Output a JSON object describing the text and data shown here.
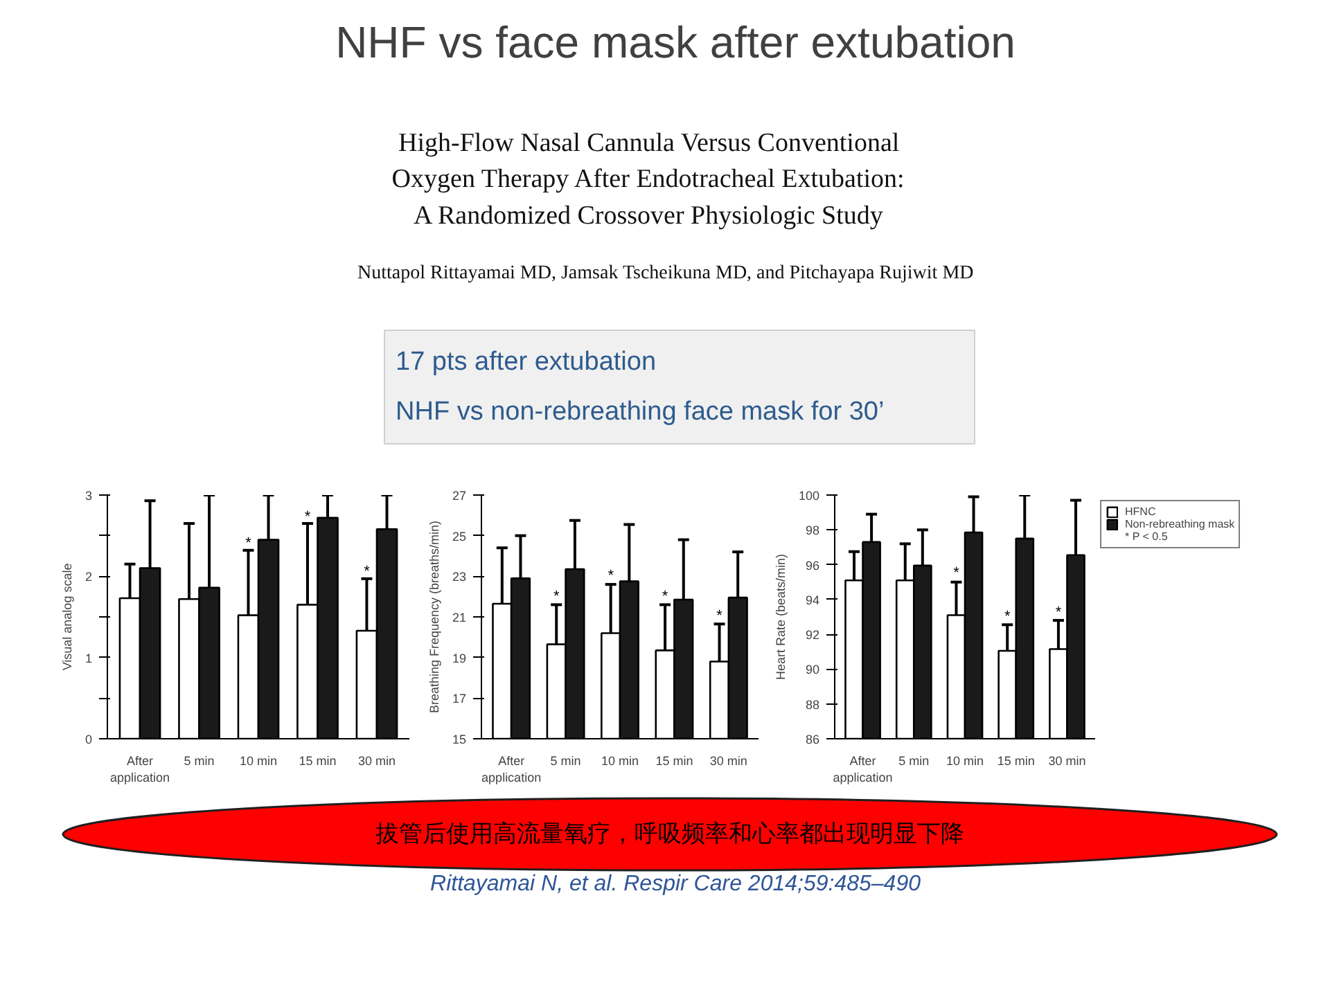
{
  "chart_data": [
    {
      "type": "other",
      "title": "NHF vs face mask after extubation",
      "annotations": [
        "High-Flow Nasal Cannula Versus Conventional\nOxygen Therapy After Endotracheal Extubation:\nA Randomized Crossover Physiologic Study",
        "Nuttapol Rittayamai MD, Jamsak Tscheikuna MD, and Pitchayapa Rujiwit MD",
        "17 pts after extubation",
        "NHF vs non-rebreathing face mask for 30’"
      ]
    },
    {
      "type": "bar",
      "ylabel": "Visual analog scale",
      "categories": [
        "After\napplication",
        "5 min",
        "10 min",
        "15 min",
        "30 min"
      ],
      "ylim": [
        0,
        3
      ],
      "yticks": [
        0,
        {
          "value": 0.5,
          "label": null
        },
        1,
        {
          "value": 1.5,
          "label": null
        },
        2,
        {
          "value": 2.5,
          "label": null
        },
        3
      ],
      "grid": false,
      "series": [
        {
          "color": "#ffffff",
          "values": [
            1.73,
            1.72,
            1.52,
            1.65,
            1.33
          ],
          "errors": [
            [
              1.73,
              2.15
            ],
            [
              1.72,
              2.65
            ],
            [
              1.52,
              2.32
            ],
            [
              1.65,
              2.65
            ],
            [
              1.33,
              1.97
            ]
          ]
        },
        {
          "color": "#1a1a1a",
          "values": [
            2.1,
            1.86,
            2.45,
            2.72,
            2.58
          ],
          "errors": [
            [
              2.1,
              2.93
            ],
            [
              1.86,
              3.0
            ],
            [
              2.45,
              3.0
            ],
            [
              2.72,
              3.0
            ],
            [
              2.58,
              3.0
            ]
          ]
        }
      ],
      "annotations": [
        {
          "text": "*",
          "x": "10 min",
          "y": 2.4
        },
        {
          "text": "*",
          "x": "15 min",
          "y": 2.73
        },
        {
          "text": "*",
          "x": "30 min",
          "y": 2.05
        }
      ]
    },
    {
      "type": "bar",
      "ylabel": "Breathing Frequency (breaths/min)",
      "categories": [
        "After\napplication",
        "5 min",
        "10 min",
        "15 min",
        "30 min"
      ],
      "ylim": [
        15,
        27
      ],
      "yticks": [
        15,
        17,
        19,
        21,
        23,
        25,
        27
      ],
      "grid": false,
      "series": [
        {
          "color": "#ffffff",
          "values": [
            21.65,
            19.65,
            20.2,
            19.35,
            18.8
          ],
          "errors": [
            [
              21.65,
              24.4
            ],
            [
              19.65,
              21.6
            ],
            [
              20.2,
              22.6
            ],
            [
              19.35,
              21.6
            ],
            [
              18.8,
              20.65
            ]
          ]
        },
        {
          "color": "#1a1a1a",
          "values": [
            22.9,
            23.35,
            22.75,
            21.85,
            21.95
          ],
          "errors": [
            [
              22.9,
              25.0
            ],
            [
              23.35,
              25.75
            ],
            [
              22.75,
              25.55
            ],
            [
              21.85,
              24.8
            ],
            [
              21.95,
              24.2
            ]
          ]
        }
      ],
      "annotations": [
        {
          "text": "*",
          "x": "5 min",
          "y": 22.0
        },
        {
          "text": "*",
          "x": "10 min",
          "y": 23.0
        },
        {
          "text": "*",
          "x": "15 min",
          "y": 22.0
        },
        {
          "text": "*",
          "x": "30 min",
          "y": 21.05
        }
      ]
    },
    {
      "type": "bar",
      "ylabel": "Heart Rate (beats/min)",
      "categories": [
        "After\napplication",
        "5 min",
        "10 min",
        "15 min",
        "30 min"
      ],
      "ylim": [
        86,
        100
      ],
      "yticks": [
        86,
        88,
        90,
        92,
        94,
        96,
        98,
        100
      ],
      "grid": false,
      "legend": "top right",
      "series": [
        {
          "name": "HFNC",
          "color": "#ffffff",
          "values": [
            95.1,
            95.1,
            93.1,
            91.05,
            91.15
          ],
          "errors": [
            [
              95.1,
              96.75
            ],
            [
              95.1,
              97.2
            ],
            [
              93.1,
              95.0
            ],
            [
              91.05,
              92.55
            ],
            [
              91.15,
              92.8
            ]
          ]
        },
        {
          "name": "Non-rebreathing mask",
          "color": "#1a1a1a",
          "values": [
            97.3,
            95.95,
            97.85,
            97.5,
            96.55
          ],
          "errors": [
            [
              97.3,
              98.9
            ],
            [
              95.95,
              98.0
            ],
            [
              97.85,
              99.9
            ],
            [
              97.5,
              100.0
            ],
            [
              96.55,
              99.7
            ]
          ]
        }
      ],
      "annotations": [
        {
          "text": "*",
          "x": "10 min",
          "y": 95.5
        },
        {
          "text": "*",
          "x": "15 min",
          "y": 93.0
        },
        {
          "text": "*",
          "x": "30 min",
          "y": 93.25
        },
        "* P < 0.5"
      ]
    },
    {
      "type": "other",
      "annotations": [
        "拔管后使用高流量氧疗，呼吸频率和心率都出现明显下降",
        "Rittayamai N, et al. Respir Care 2014;59:485–490"
      ]
    }
  ]
}
